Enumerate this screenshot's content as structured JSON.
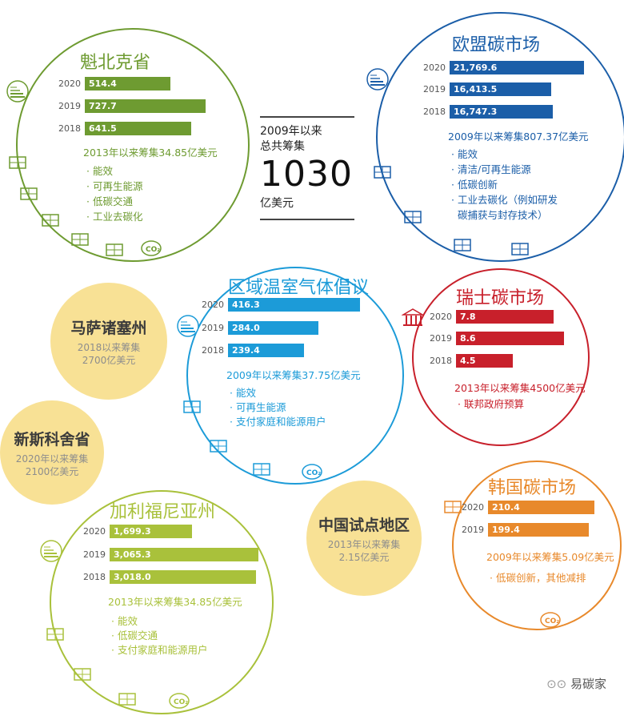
{
  "center": {
    "line1": "2009年以来",
    "line2": "总共筹集",
    "total": "1030",
    "unit": "亿美元"
  },
  "watermark": "易碳家",
  "colors": {
    "quebec": "#6e9b31",
    "eu": "#1b5ea8",
    "rggi": "#1c9bd8",
    "swiss": "#c8202b",
    "korea": "#e8892b",
    "california": "#a9c13b",
    "small_region": "#f8e195"
  },
  "small_regions": [
    {
      "name": "马萨诸塞州",
      "line1": "2018以来筹集",
      "line2": "2700亿美元"
    },
    {
      "name": "新斯科舍省",
      "line1": "2020年以来筹集",
      "line2": "2100亿美元"
    },
    {
      "name": "中国试点地区",
      "line1": "2013年以来筹集",
      "line2": "2.15亿美元"
    }
  ],
  "chart_data": [
    {
      "type": "bar",
      "title": "魁北克省",
      "categories": [
        "2020",
        "2019",
        "2018"
      ],
      "values": [
        514.4,
        727.7,
        641.5
      ],
      "labels": [
        "514.4",
        "727.7",
        "641.5"
      ],
      "summary": "2013年以来筹集34.85亿美元",
      "bullets": [
        "能效",
        "可再生能源",
        "低碳交通",
        "工业去碳化"
      ],
      "color": "#6e9b31",
      "icons": [
        "energy-rating-icon",
        "wind-turbine-icon",
        "solar-panel-icon",
        "bus-icon",
        "leaf-icon",
        "factory-icon",
        "co2-cloud-icon"
      ]
    },
    {
      "type": "bar",
      "title": "欧盟碳市场",
      "categories": [
        "2020",
        "2019",
        "2018"
      ],
      "values": [
        21769.6,
        16413.5,
        16747.3
      ],
      "labels": [
        "21,769.6",
        "16,413.5",
        "16,747.3"
      ],
      "summary": "2009年以来筹集807.37亿美元",
      "bullets": [
        "能效",
        "清洁/可再生能源",
        "低碳创新",
        "工业去碳化（例如研发",
        "碳捕获与封存技术）"
      ],
      "color": "#1b5ea8",
      "icons": [
        "energy-rating-icon",
        "wind-turbine-icon",
        "solar-panel-icon",
        "lightbulb-icon",
        "factory-icon"
      ]
    },
    {
      "type": "bar",
      "title": "区域温室气体倡议",
      "categories": [
        "2020",
        "2019",
        "2018"
      ],
      "values": [
        416.3,
        284.0,
        239.4
      ],
      "labels": [
        "416.3",
        "284.0",
        "239.4"
      ],
      "summary": "2009年以来筹集37.75亿美元",
      "bullets": [
        "能效",
        "可再生能源",
        "支付家庭和能源用户"
      ],
      "color": "#1c9bd8",
      "icons": [
        "energy-rating-icon",
        "solar-panel-icon",
        "factory-icon",
        "house-icon",
        "co2-cloud-icon"
      ]
    },
    {
      "type": "bar",
      "title": "瑞士碳市场",
      "categories": [
        "2020",
        "2019",
        "2018"
      ],
      "values": [
        7.8,
        8.6,
        4.5
      ],
      "labels": [
        "7.8",
        "8.6",
        "4.5"
      ],
      "summary": "2013年以来筹集4500亿美元",
      "bullets": [
        "联邦政府预算"
      ],
      "color": "#c8202b",
      "icons": [
        "government-bank-icon"
      ]
    },
    {
      "type": "bar",
      "title": "韩国碳市场",
      "categories": [
        "2020",
        "2019"
      ],
      "values": [
        210.4,
        199.4
      ],
      "labels": [
        "210.4",
        "199.4"
      ],
      "summary": "2009年以来筹集5.09亿美元",
      "bullets": [
        "低碳创新，其他减排"
      ],
      "color": "#e8892b",
      "icons": [
        "lightbulb-icon",
        "co2-cloud-icon"
      ]
    },
    {
      "type": "bar",
      "title": "加利福尼亚州",
      "categories": [
        "2020",
        "2019",
        "2018"
      ],
      "values": [
        1699.3,
        3065.3,
        3018.0
      ],
      "labels": [
        "1,699.3",
        "3,065.3",
        "3,018.0"
      ],
      "summary": "2013年以来筹集34.85亿美元",
      "bullets": [
        "能效",
        "低碳交通",
        "支付家庭和能源用户"
      ],
      "color": "#a9c13b",
      "icons": [
        "energy-rating-icon",
        "bus-icon",
        "leaf-icon",
        "factory-icon",
        "co2-cloud-icon"
      ]
    }
  ]
}
